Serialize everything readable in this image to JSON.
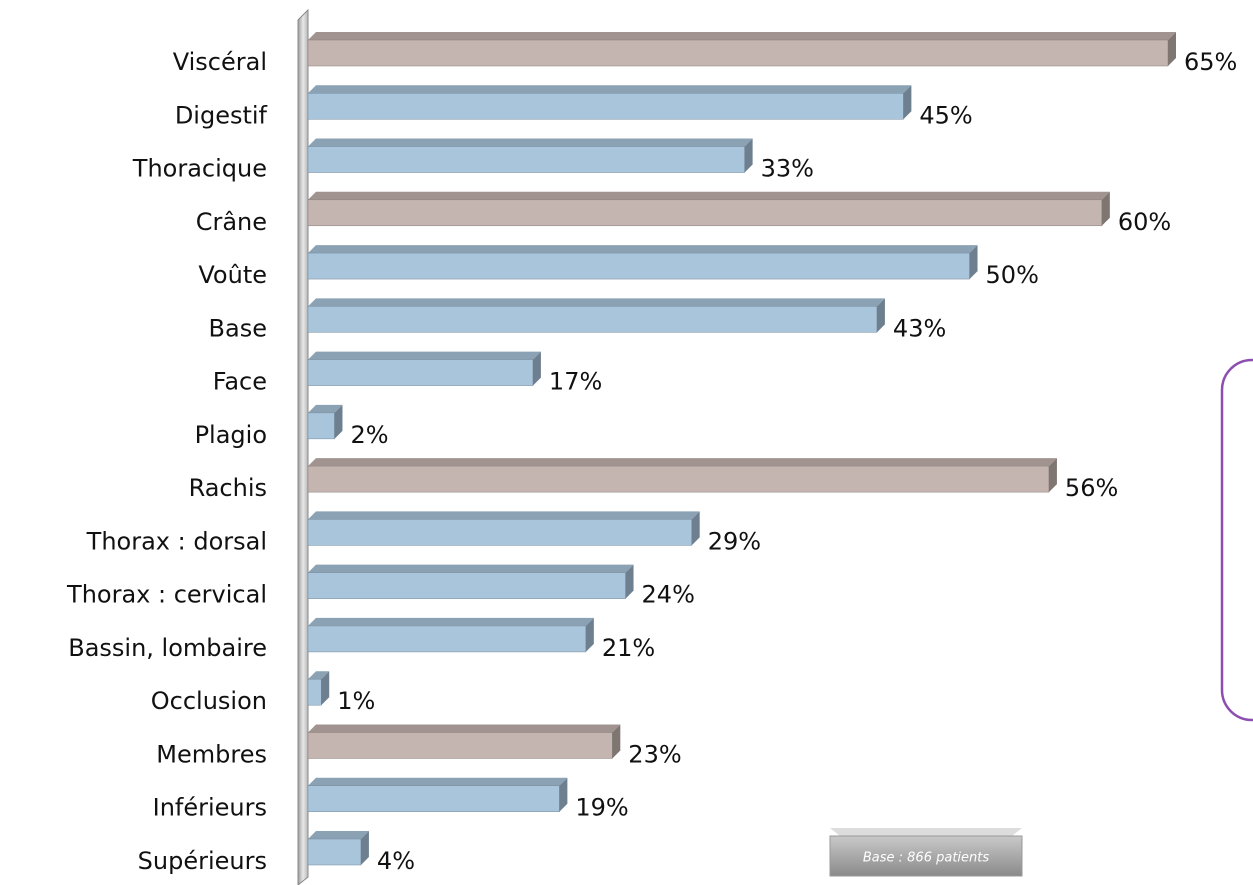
{
  "chart_data": {
    "type": "bar",
    "orientation": "horizontal",
    "categories": [
      "Viscéral",
      "Digestif",
      "Thoracique",
      "Crâne",
      "Voûte",
      "Base",
      "Face",
      "Plagio",
      "Rachis",
      "Thorax : dorsal",
      "Thorax : cervical",
      "Bassin, lombaire",
      "Occlusion",
      "Membres",
      "Inférieurs",
      "Supérieurs"
    ],
    "values": [
      65,
      45,
      33,
      60,
      50,
      43,
      17,
      2,
      56,
      29,
      24,
      21,
      1,
      23,
      19,
      4
    ],
    "value_labels": [
      "65%",
      "45%",
      "33%",
      "60%",
      "50%",
      "43%",
      "17%",
      "2%",
      "56%",
      "29%",
      "24%",
      "21%",
      "1%",
      "23%",
      "19%",
      "4%"
    ],
    "colors": [
      "#c4b5b0",
      "#a9c5dc",
      "#a9c5dc",
      "#c4b5b0",
      "#a9c5dc",
      "#a9c5dc",
      "#a9c5dc",
      "#a9c5dc",
      "#c4b5b0",
      "#a9c5dc",
      "#a9c5dc",
      "#a9c5dc",
      "#a9c5dc",
      "#c4b5b0",
      "#a9c5dc",
      "#a9c5dc"
    ],
    "annotation": "Base : 866 patients"
  }
}
